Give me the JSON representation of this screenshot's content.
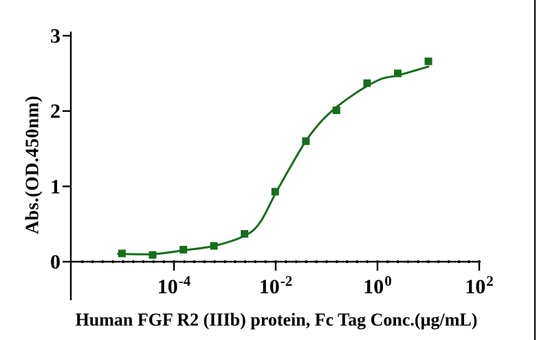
{
  "colors": {
    "series_green": "#166e1b",
    "axis_black": "#000000",
    "background": "#ffffff",
    "frame_line": "#000000"
  },
  "chart_data": {
    "type": "scatter",
    "subtype": "dose-response-sigmoid",
    "title": "",
    "xlabel": "Human FGF R2 (IIIb) protein, Fc Tag Conc.(µg/mL)",
    "ylabel": "Abs.(OD.450nm)",
    "x_scale": "log10",
    "x_log_range": [
      -6.03,
      2.18
    ],
    "x_major_tick_base": "10",
    "x_major_tick_exponents": [
      "-4",
      "-2",
      "0",
      "2"
    ],
    "x_minor_ticks_per_decade": 5,
    "ylim": [
      0,
      3
    ],
    "y_ticks": [
      "0",
      "1",
      "2",
      "3"
    ],
    "grid": false,
    "legend": false,
    "series": [
      {
        "marker": "square",
        "color": "#166e1b",
        "x": [
          9.54e-06,
          3.81e-05,
          0.000153,
          0.00061,
          0.00244,
          0.00977,
          0.0391,
          0.156,
          0.625,
          2.5,
          10
        ],
        "y": [
          0.11,
          0.09,
          0.16,
          0.21,
          0.37,
          0.93,
          1.6,
          2.01,
          2.37,
          2.5,
          2.66
        ]
      }
    ],
    "fit_curve": {
      "color": "#166e1b",
      "anchors_logx": [
        -5.1,
        -4.42,
        -3.82,
        -3.21,
        -2.61,
        -2.31,
        -2.01,
        -1.71,
        -1.41,
        -1.11,
        -0.81,
        -0.51,
        -0.21,
        0.09,
        0.39,
        0.7,
        1.0
      ],
      "anchors_y": [
        0.105,
        0.1,
        0.15,
        0.21,
        0.345,
        0.52,
        0.9,
        1.26,
        1.6,
        1.86,
        2.05,
        2.2,
        2.33,
        2.43,
        2.47,
        2.53,
        2.59
      ]
    }
  }
}
